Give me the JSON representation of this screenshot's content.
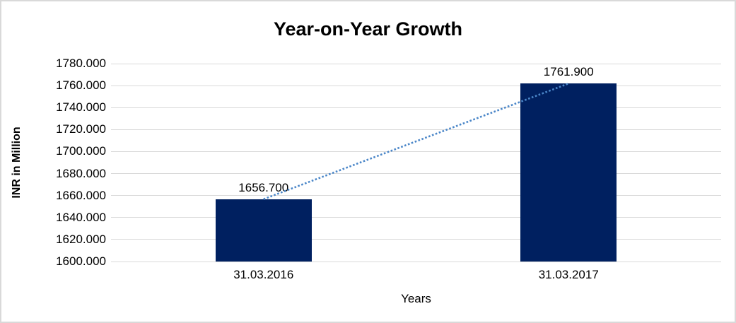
{
  "chart_data": {
    "type": "bar",
    "title": "Year-on-Year Growth",
    "xlabel": "Years",
    "ylabel": "INR in Million",
    "categories": [
      "31.03.2016",
      "31.03.2017"
    ],
    "values": [
      1656.7,
      1761.9
    ],
    "data_labels": [
      "1656.700",
      "1761.900"
    ],
    "y_tick_labels": [
      "1780.000",
      "1760.000",
      "1740.000",
      "1720.000",
      "1700.000",
      "1680.000",
      "1660.000",
      "1640.000",
      "1620.000",
      "1600.000"
    ],
    "ylim": [
      1600,
      1780
    ],
    "y_tick_step": 20,
    "grid": true,
    "legend": "none",
    "bar_color": "#002060",
    "trendline": {
      "style": "dotted",
      "color": "#4a86c8",
      "connects": "bar tops"
    },
    "gridline_color": "#d9d9d9",
    "frame_border_color": "#d9d9d9",
    "text_color": "#000000"
  }
}
